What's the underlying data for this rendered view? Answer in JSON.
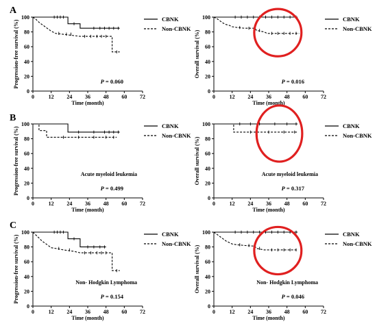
{
  "figure": {
    "panel_labels": [
      "A",
      "B",
      "C"
    ],
    "highlight_color": "#e02020",
    "line_color": "#000000"
  },
  "chart_data": [
    {
      "id": "A-left",
      "row": 0,
      "col": 0,
      "type": "line",
      "ylabel": "Progression-free survival (%)",
      "xlabel": "Time (month)",
      "xlim": [
        0,
        72
      ],
      "ylim": [
        0,
        100
      ],
      "xticks": [
        0,
        12,
        24,
        36,
        48,
        60,
        72
      ],
      "yticks": [
        0,
        20,
        40,
        60,
        80,
        100
      ],
      "pvalue": "= 0.060",
      "annotation": "",
      "highlight": false,
      "legend": [
        "CBNK",
        "Non-CBNK"
      ],
      "series": [
        {
          "name": "CBNK",
          "style": "solid",
          "steps": [
            [
              0,
              100
            ],
            [
              23,
              100
            ],
            [
              23,
              91
            ],
            [
              31,
              91
            ],
            [
              31,
              85
            ],
            [
              57,
              85
            ]
          ],
          "censors": [
            [
              14,
              100
            ],
            [
              16,
              100
            ],
            [
              18,
              100
            ],
            [
              20,
              100
            ],
            [
              27,
              91
            ],
            [
              40,
              85
            ],
            [
              44,
              85
            ],
            [
              47,
              85
            ],
            [
              50,
              85
            ],
            [
              53,
              85
            ],
            [
              56,
              85
            ]
          ]
        },
        {
          "name": "Non-CBNK",
          "style": "dashed",
          "steps": [
            [
              0,
              100
            ],
            [
              2,
              97
            ],
            [
              4,
              93
            ],
            [
              6,
              90
            ],
            [
              8,
              87
            ],
            [
              10,
              84
            ],
            [
              12,
              81
            ],
            [
              15,
              78
            ],
            [
              19,
              77
            ],
            [
              27,
              75
            ],
            [
              31,
              74
            ],
            [
              52,
              74
            ],
            [
              52,
              53
            ],
            [
              57,
              53
            ]
          ],
          "censors": [
            [
              17,
              78
            ],
            [
              22,
              77
            ],
            [
              25,
              77
            ],
            [
              34,
              74
            ],
            [
              38,
              74
            ],
            [
              42,
              74
            ],
            [
              45,
              74
            ],
            [
              48,
              74
            ],
            [
              55,
              53
            ]
          ]
        }
      ]
    },
    {
      "id": "A-right",
      "row": 0,
      "col": 1,
      "type": "line",
      "ylabel": "Overall survival (%)",
      "xlabel": "Time (month)",
      "xlim": [
        0,
        72
      ],
      "ylim": [
        0,
        100
      ],
      "xticks": [
        0,
        12,
        24,
        36,
        48,
        60,
        72
      ],
      "yticks": [
        0,
        20,
        40,
        60,
        80,
        100
      ],
      "pvalue": "= 0.016",
      "annotation": "",
      "highlight": true,
      "highlight_center": [
        42,
        79
      ],
      "highlight_radius": [
        15.5,
        32
      ],
      "legend": [
        "CBNK",
        "Non-CBNK"
      ],
      "series": [
        {
          "name": "CBNK",
          "style": "solid",
          "steps": [
            [
              0,
              100
            ],
            [
              55,
              100
            ]
          ],
          "censors": [
            [
              14,
              100
            ],
            [
              18,
              100
            ],
            [
              22,
              100
            ],
            [
              26,
              100
            ],
            [
              30,
              100
            ],
            [
              34,
              100
            ],
            [
              38,
              100
            ],
            [
              42,
              100
            ],
            [
              46,
              100
            ],
            [
              50,
              100
            ],
            [
              54,
              100
            ]
          ]
        },
        {
          "name": "Non-CBNK",
          "style": "dashed",
          "steps": [
            [
              0,
              100
            ],
            [
              2,
              98
            ],
            [
              4,
              95
            ],
            [
              6,
              92
            ],
            [
              8,
              90
            ],
            [
              10,
              89
            ],
            [
              12,
              87
            ],
            [
              15,
              86
            ],
            [
              20,
              85
            ],
            [
              27,
              85
            ],
            [
              28,
              82
            ],
            [
              33,
              80
            ],
            [
              35,
              78
            ],
            [
              56,
              78
            ]
          ],
          "censors": [
            [
              17,
              86
            ],
            [
              23,
              85
            ],
            [
              30,
              82
            ],
            [
              38,
              78
            ],
            [
              42,
              78
            ],
            [
              46,
              78
            ],
            [
              50,
              78
            ],
            [
              54,
              78
            ]
          ]
        }
      ]
    },
    {
      "id": "B-left",
      "row": 1,
      "col": 0,
      "type": "line",
      "ylabel": "Progression-free survival (%)",
      "xlabel": "Time (month)",
      "xlim": [
        0,
        72
      ],
      "ylim": [
        0,
        100
      ],
      "xticks": [
        0,
        12,
        24,
        36,
        48,
        60,
        72
      ],
      "yticks": [
        0,
        20,
        40,
        60,
        80,
        100
      ],
      "pvalue": "= 0.499",
      "annotation": "Acute myeloid leukemia",
      "highlight": false,
      "legend": [
        "CBNK",
        "Non-CBNK"
      ],
      "series": [
        {
          "name": "CBNK",
          "style": "solid",
          "steps": [
            [
              0,
              100
            ],
            [
              23,
              100
            ],
            [
              23,
              89
            ],
            [
              57,
              89
            ]
          ],
          "censors": [
            [
              30,
              89
            ],
            [
              40,
              89
            ],
            [
              47,
              89
            ],
            [
              50,
              89
            ],
            [
              53,
              89
            ],
            [
              56,
              89
            ]
          ]
        },
        {
          "name": "Non-CBNK",
          "style": "dashed",
          "steps": [
            [
              0,
              100
            ],
            [
              4,
              100
            ],
            [
              4,
              91
            ],
            [
              9,
              91
            ],
            [
              9,
              82
            ],
            [
              55,
              82
            ]
          ],
          "censors": [
            [
              20,
              82
            ],
            [
              30,
              82
            ],
            [
              40,
              82
            ],
            [
              48,
              82
            ],
            [
              53,
              82
            ]
          ]
        }
      ]
    },
    {
      "id": "B-right",
      "row": 1,
      "col": 1,
      "type": "line",
      "ylabel": "Overall survival (%)",
      "xlabel": "Time (month)",
      "xlim": [
        0,
        72
      ],
      "ylim": [
        0,
        100
      ],
      "xticks": [
        0,
        12,
        24,
        36,
        48,
        60,
        72
      ],
      "yticks": [
        0,
        20,
        40,
        60,
        80,
        100
      ],
      "pvalue": "= 0.317",
      "annotation": "Acute myeloid leukemia",
      "highlight": true,
      "highlight_center": [
        43,
        87
      ],
      "highlight_radius": [
        15,
        38
      ],
      "legend": [
        "CBNK",
        "Non-CBNK"
      ],
      "series": [
        {
          "name": "CBNK",
          "style": "solid",
          "steps": [
            [
              0,
              100
            ],
            [
              55,
              100
            ]
          ],
          "censors": [
            [
              17,
              100
            ],
            [
              24,
              100
            ],
            [
              30,
              100
            ],
            [
              40,
              100
            ],
            [
              48,
              100
            ],
            [
              54,
              100
            ]
          ]
        },
        {
          "name": "Non-CBNK",
          "style": "dashed",
          "steps": [
            [
              0,
              100
            ],
            [
              13,
              100
            ],
            [
              13,
              89
            ],
            [
              55,
              89
            ]
          ],
          "censors": [
            [
              24,
              89
            ],
            [
              36,
              89
            ],
            [
              46,
              89
            ],
            [
              53,
              89
            ]
          ]
        }
      ]
    },
    {
      "id": "C-left",
      "row": 2,
      "col": 0,
      "type": "line",
      "ylabel": "Progression-free survival (%)",
      "xlabel": "Time (month)",
      "xlim": [
        0,
        72
      ],
      "ylim": [
        0,
        100
      ],
      "xticks": [
        0,
        12,
        24,
        36,
        48,
        60,
        72
      ],
      "yticks": [
        0,
        20,
        40,
        60,
        80,
        100
      ],
      "pvalue": "= 0.154",
      "annotation": "Non- Hodgkin Lymphoma",
      "highlight": false,
      "legend": [
        "CBNK",
        "Non-CBNK"
      ],
      "series": [
        {
          "name": "CBNK",
          "style": "solid",
          "steps": [
            [
              0,
              100
            ],
            [
              23,
              100
            ],
            [
              23,
              91
            ],
            [
              31,
              91
            ],
            [
              31,
              80
            ],
            [
              48,
              80
            ]
          ],
          "censors": [
            [
              14,
              100
            ],
            [
              16,
              100
            ],
            [
              18,
              100
            ],
            [
              20,
              100
            ],
            [
              27,
              91
            ],
            [
              36,
              80
            ],
            [
              40,
              80
            ],
            [
              44,
              80
            ],
            [
              47,
              80
            ]
          ]
        },
        {
          "name": "Non-CBNK",
          "style": "dashed",
          "steps": [
            [
              0,
              100
            ],
            [
              2,
              96
            ],
            [
              4,
              92
            ],
            [
              6,
              88
            ],
            [
              8,
              85
            ],
            [
              10,
              82
            ],
            [
              12,
              79
            ],
            [
              15,
              78
            ],
            [
              20,
              76
            ],
            [
              27,
              74
            ],
            [
              31,
              72
            ],
            [
              52,
              72
            ],
            [
              52,
              48
            ],
            [
              57,
              48
            ]
          ],
          "censors": [
            [
              17,
              78
            ],
            [
              24,
              76
            ],
            [
              34,
              72
            ],
            [
              38,
              72
            ],
            [
              42,
              72
            ],
            [
              45,
              72
            ],
            [
              48,
              72
            ],
            [
              55,
              48
            ]
          ]
        }
      ]
    },
    {
      "id": "C-right",
      "row": 2,
      "col": 1,
      "type": "line",
      "ylabel": "Overall survival (%)",
      "xlabel": "Time (month)",
      "xlim": [
        0,
        72
      ],
      "ylim": [
        0,
        100
      ],
      "xticks": [
        0,
        12,
        24,
        36,
        48,
        60,
        72
      ],
      "yticks": [
        0,
        20,
        40,
        60,
        80,
        100
      ],
      "pvalue": "= 0.046",
      "annotation": "Non- Hodgkin Lymphoma",
      "highlight": true,
      "highlight_center": [
        42,
        75
      ],
      "highlight_radius": [
        15.5,
        32
      ],
      "legend": [
        "CBNK",
        "Non-CBNK"
      ],
      "series": [
        {
          "name": "CBNK",
          "style": "solid",
          "steps": [
            [
              0,
              100
            ],
            [
              55,
              100
            ]
          ],
          "censors": [
            [
              14,
              100
            ],
            [
              18,
              100
            ],
            [
              22,
              100
            ],
            [
              26,
              100
            ],
            [
              30,
              100
            ],
            [
              34,
              100
            ],
            [
              38,
              100
            ],
            [
              42,
              100
            ],
            [
              46,
              100
            ],
            [
              50,
              100
            ],
            [
              54,
              100
            ]
          ]
        },
        {
          "name": "Non-CBNK",
          "style": "dashed",
          "steps": [
            [
              0,
              100
            ],
            [
              2,
              97
            ],
            [
              4,
              94
            ],
            [
              6,
              91
            ],
            [
              8,
              88
            ],
            [
              10,
              86
            ],
            [
              12,
              84
            ],
            [
              15,
              83
            ],
            [
              20,
              82
            ],
            [
              27,
              81
            ],
            [
              28,
              78
            ],
            [
              33,
              76
            ],
            [
              55,
              76
            ]
          ],
          "censors": [
            [
              17,
              83
            ],
            [
              23,
              82
            ],
            [
              30,
              78
            ],
            [
              38,
              76
            ],
            [
              42,
              76
            ],
            [
              46,
              76
            ],
            [
              50,
              76
            ],
            [
              54,
              76
            ]
          ]
        }
      ]
    }
  ]
}
